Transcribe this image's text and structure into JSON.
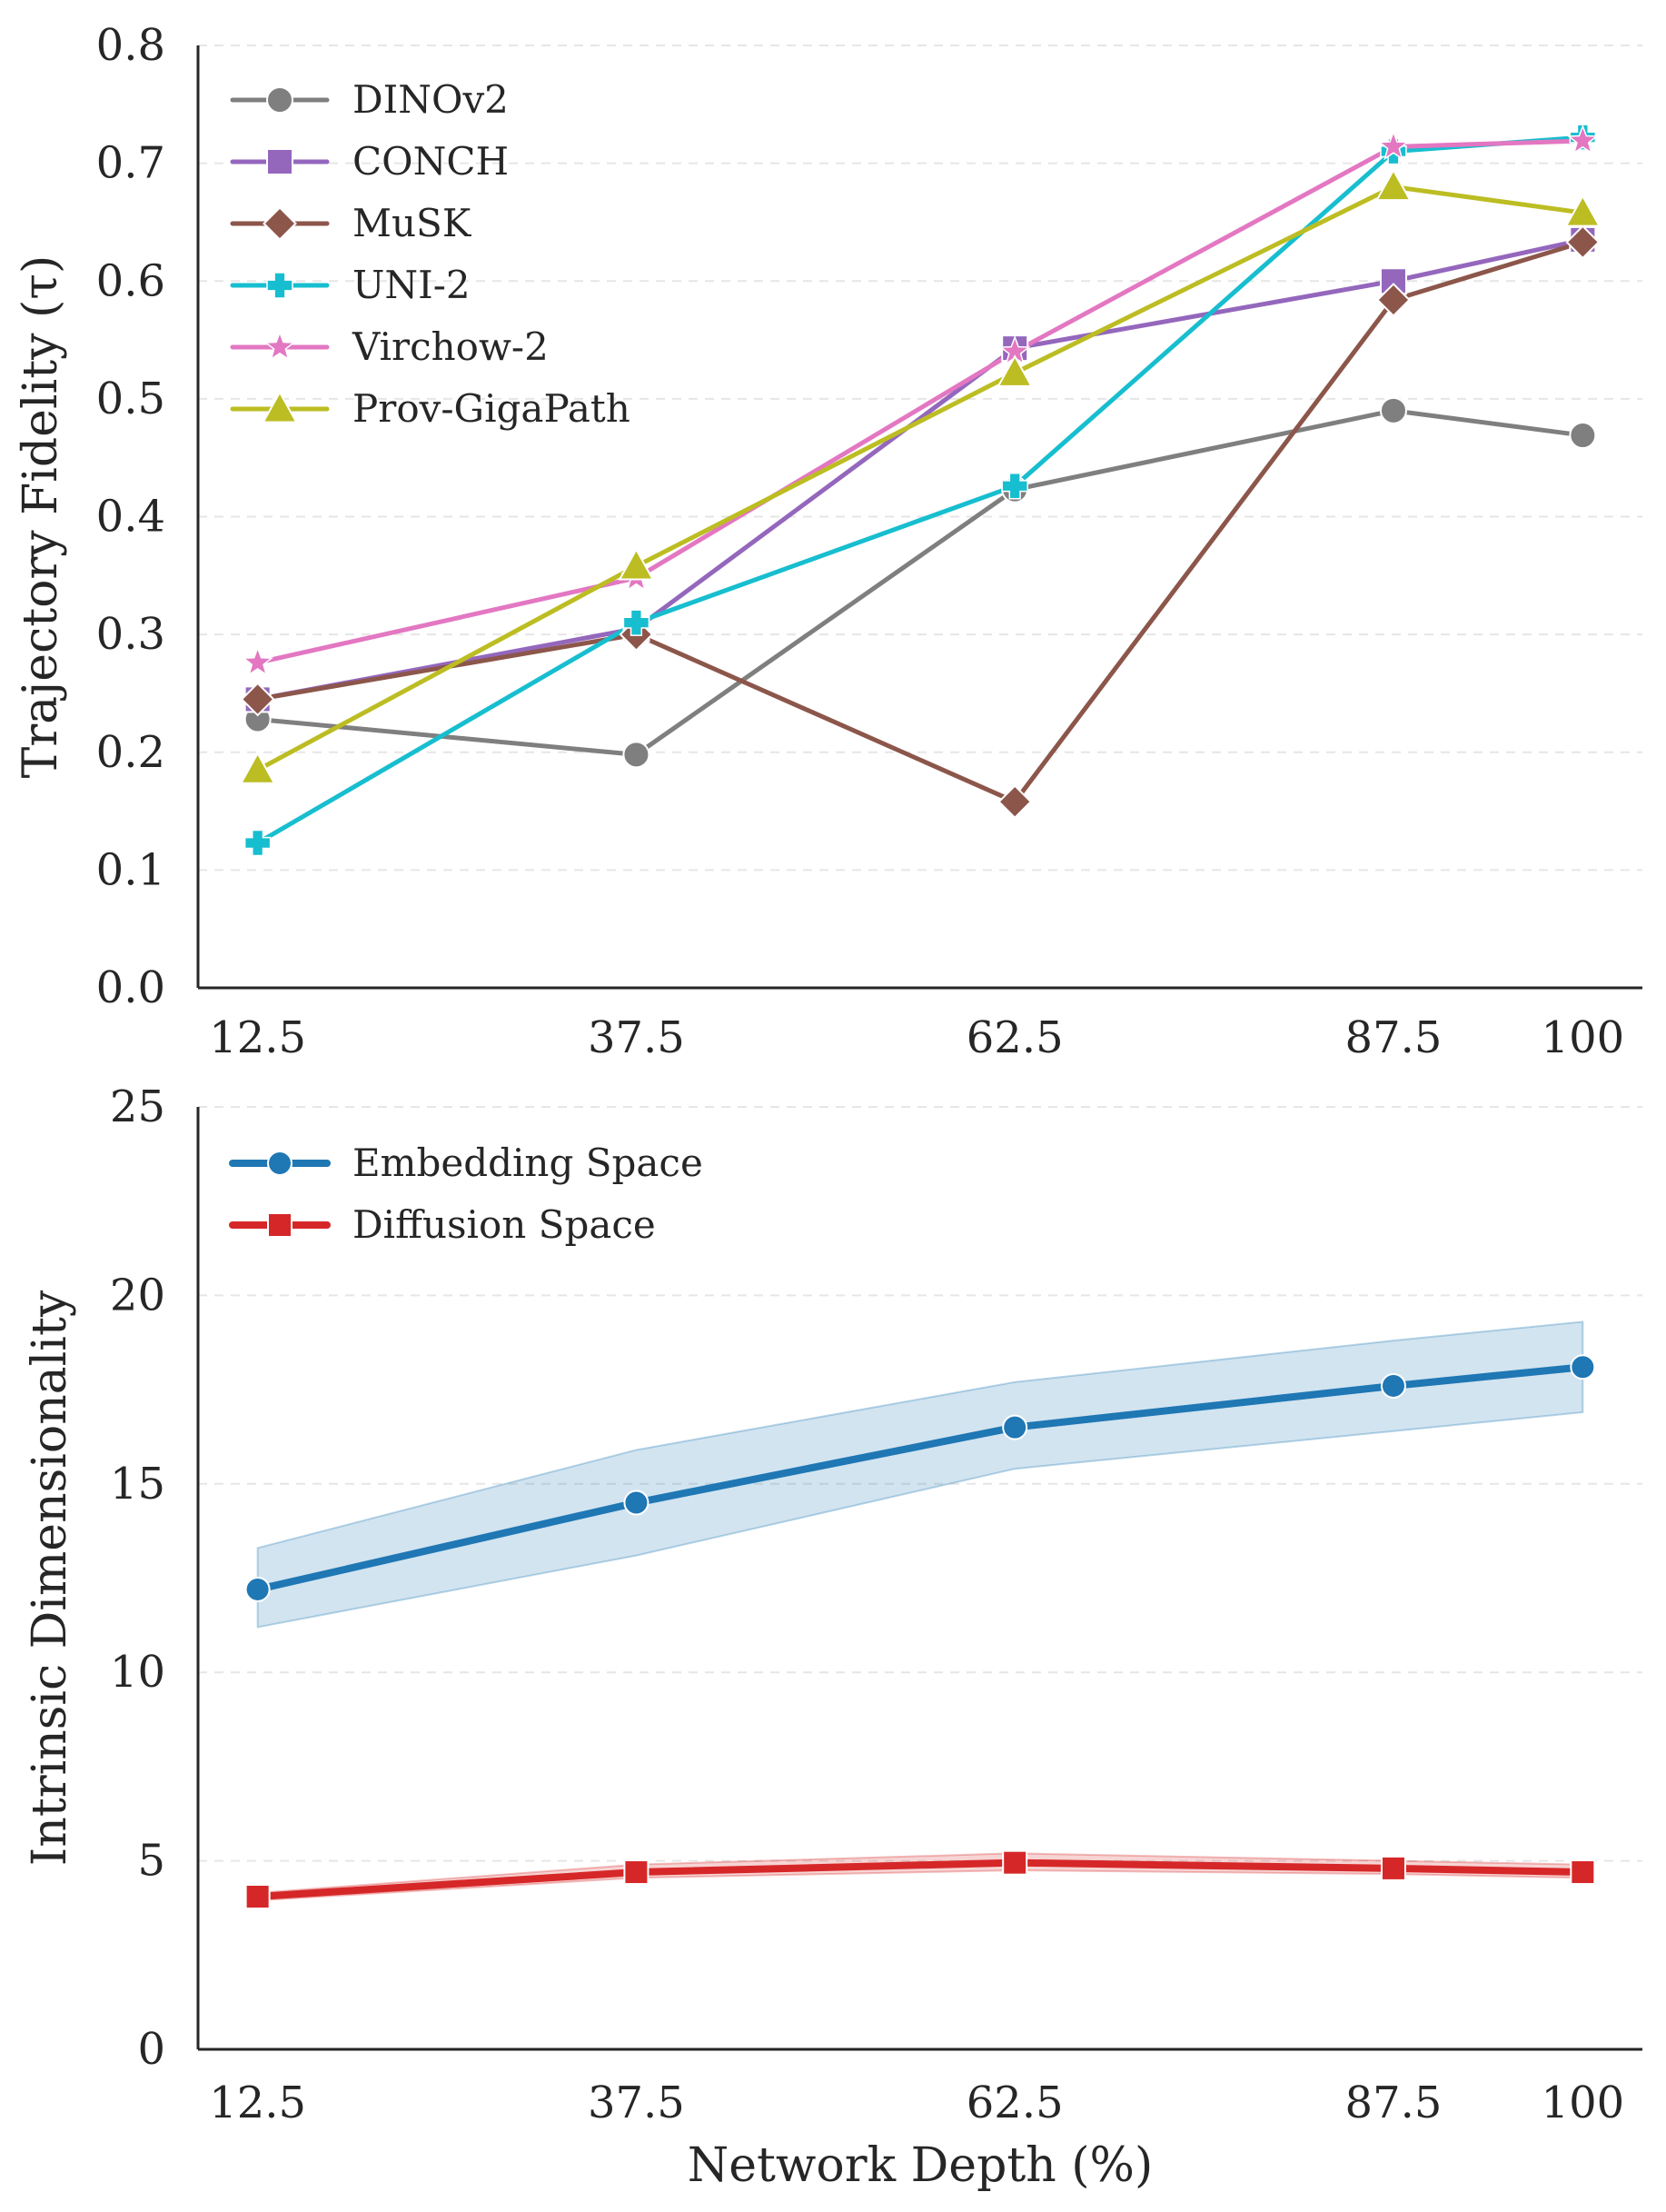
{
  "chart_data": [
    {
      "type": "line",
      "title": "",
      "xlabel": "",
      "ylabel": "Trajectory Fidelity (τ)",
      "x": [
        12.5,
        37.5,
        62.5,
        87.5,
        100
      ],
      "x_tick_labels": [
        "12.5",
        "37.5",
        "62.5",
        "87.5",
        "100"
      ],
      "ylim": [
        0.0,
        0.8
      ],
      "y_ticks": [
        0.0,
        0.1,
        0.2,
        0.3,
        0.4,
        0.5,
        0.6,
        0.7,
        0.8
      ],
      "y_tick_labels": [
        "0.0",
        "0.1",
        "0.2",
        "0.3",
        "0.4",
        "0.5",
        "0.6",
        "0.7",
        "0.8"
      ],
      "grid": "horizontal dashed",
      "legend_position": "top-left",
      "series": [
        {
          "name": "DINOv2",
          "color": "#7f7f7f",
          "marker": "circle",
          "values": [
            0.228,
            0.198,
            0.423,
            0.49,
            0.469
          ]
        },
        {
          "name": "CONCH",
          "color": "#9467bd",
          "marker": "square",
          "values": [
            0.245,
            0.305,
            0.543,
            0.6,
            0.635
          ]
        },
        {
          "name": "MuSK",
          "color": "#8c564b",
          "marker": "diamond",
          "values": [
            0.245,
            0.3,
            0.158,
            0.584,
            0.633
          ]
        },
        {
          "name": "UNI-2",
          "color": "#17becf",
          "marker": "plus",
          "values": [
            0.123,
            0.31,
            0.426,
            0.71,
            0.722
          ]
        },
        {
          "name": "Virchow-2",
          "color": "#e377c2",
          "marker": "star",
          "values": [
            0.276,
            0.348,
            0.54,
            0.714,
            0.719
          ]
        },
        {
          "name": "Prov-GigaPath",
          "color": "#bcbd22",
          "marker": "triangle",
          "values": [
            0.185,
            0.358,
            0.522,
            0.68,
            0.658
          ]
        }
      ]
    },
    {
      "type": "line",
      "title": "",
      "xlabel": "Network Depth (%)",
      "ylabel": "Intrinsic Dimensionality",
      "x": [
        12.5,
        37.5,
        62.5,
        87.5,
        100
      ],
      "x_tick_labels": [
        "12.5",
        "37.5",
        "62.5",
        "87.5",
        "100"
      ],
      "ylim": [
        0,
        25
      ],
      "y_ticks": [
        0,
        5,
        10,
        15,
        20,
        25
      ],
      "y_tick_labels": [
        "0",
        "5",
        "10",
        "15",
        "20",
        "25"
      ],
      "grid": "horizontal dashed",
      "legend_position": "top-left",
      "series": [
        {
          "name": "Embedding Space",
          "color": "#1f77b4",
          "marker": "circle",
          "values": [
            12.2,
            14.5,
            16.5,
            17.6,
            18.1
          ],
          "band_lower": [
            11.2,
            13.1,
            15.4,
            16.4,
            16.9
          ],
          "band_upper": [
            13.3,
            15.9,
            17.7,
            18.8,
            19.3
          ]
        },
        {
          "name": "Diffusion Space",
          "color": "#d62728",
          "marker": "square",
          "values": [
            4.05,
            4.7,
            4.95,
            4.8,
            4.7
          ],
          "band_lower": [
            3.95,
            4.55,
            4.75,
            4.65,
            4.55
          ],
          "band_upper": [
            4.15,
            4.9,
            5.2,
            5.0,
            4.9
          ]
        }
      ]
    }
  ]
}
